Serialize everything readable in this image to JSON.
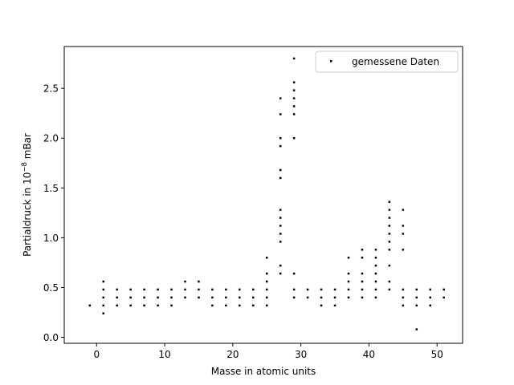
{
  "chart_data": {
    "type": "scatter",
    "xlabel": "Masse in atomic units",
    "ylabel_prefix": "Partialdruck in 10",
    "ylabel_exponent": "−8",
    "ylabel_suffix": " mBar",
    "xlim": [
      -4.75,
      53.75
    ],
    "ylim": [
      -0.06,
      2.92
    ],
    "xticks": [
      0,
      10,
      20,
      30,
      40,
      50
    ],
    "xtick_labels": [
      "0",
      "10",
      "20",
      "30",
      "40",
      "50"
    ],
    "yticks": [
      0.0,
      0.5,
      1.0,
      1.5,
      2.0,
      2.5
    ],
    "ytick_labels": [
      "0.0",
      "0.5",
      "1.0",
      "1.5",
      "2.0",
      "2.5"
    ],
    "grid": false,
    "legend_position": "top-right",
    "marker_color": "#000000",
    "series": [
      {
        "name": "gemessene Daten",
        "points": [
          [
            -1,
            0.32
          ],
          [
            1,
            0.24
          ],
          [
            1,
            0.32
          ],
          [
            1,
            0.4
          ],
          [
            1,
            0.48
          ],
          [
            1,
            0.56
          ],
          [
            3,
            0.32
          ],
          [
            3,
            0.4
          ],
          [
            3,
            0.48
          ],
          [
            5,
            0.32
          ],
          [
            5,
            0.4
          ],
          [
            5,
            0.48
          ],
          [
            7,
            0.32
          ],
          [
            7,
            0.4
          ],
          [
            7,
            0.48
          ],
          [
            9,
            0.32
          ],
          [
            9,
            0.4
          ],
          [
            9,
            0.48
          ],
          [
            11,
            0.32
          ],
          [
            11,
            0.4
          ],
          [
            11,
            0.48
          ],
          [
            13,
            0.4
          ],
          [
            13,
            0.48
          ],
          [
            13,
            0.56
          ],
          [
            15,
            0.4
          ],
          [
            15,
            0.48
          ],
          [
            15,
            0.56
          ],
          [
            17,
            0.32
          ],
          [
            17,
            0.4
          ],
          [
            17,
            0.48
          ],
          [
            19,
            0.32
          ],
          [
            19,
            0.4
          ],
          [
            19,
            0.48
          ],
          [
            21,
            0.32
          ],
          [
            21,
            0.4
          ],
          [
            21,
            0.48
          ],
          [
            23,
            0.32
          ],
          [
            23,
            0.4
          ],
          [
            23,
            0.48
          ],
          [
            25,
            0.32
          ],
          [
            25,
            0.4
          ],
          [
            25,
            0.48
          ],
          [
            25,
            0.56
          ],
          [
            25,
            0.64
          ],
          [
            25,
            0.8
          ],
          [
            27,
            0.64
          ],
          [
            27,
            0.72
          ],
          [
            27,
            0.96
          ],
          [
            27,
            1.04
          ],
          [
            27,
            1.12
          ],
          [
            27,
            1.2
          ],
          [
            27,
            1.28
          ],
          [
            27,
            1.6
          ],
          [
            27,
            1.68
          ],
          [
            27,
            1.92
          ],
          [
            27,
            2.0
          ],
          [
            27,
            2.24
          ],
          [
            27,
            2.4
          ],
          [
            29,
            0.4
          ],
          [
            29,
            0.48
          ],
          [
            29,
            0.64
          ],
          [
            29,
            2.0
          ],
          [
            29,
            2.24
          ],
          [
            29,
            2.32
          ],
          [
            29,
            2.4
          ],
          [
            29,
            2.48
          ],
          [
            29,
            2.56
          ],
          [
            29,
            2.8
          ],
          [
            31,
            0.4
          ],
          [
            31,
            0.48
          ],
          [
            33,
            0.32
          ],
          [
            33,
            0.4
          ],
          [
            33,
            0.48
          ],
          [
            35,
            0.32
          ],
          [
            35,
            0.4
          ],
          [
            35,
            0.48
          ],
          [
            37,
            0.4
          ],
          [
            37,
            0.48
          ],
          [
            37,
            0.56
          ],
          [
            37,
            0.64
          ],
          [
            37,
            0.8
          ],
          [
            39,
            0.4
          ],
          [
            39,
            0.48
          ],
          [
            39,
            0.56
          ],
          [
            39,
            0.64
          ],
          [
            39,
            0.8
          ],
          [
            39,
            0.88
          ],
          [
            41,
            0.4
          ],
          [
            41,
            0.48
          ],
          [
            41,
            0.56
          ],
          [
            41,
            0.64
          ],
          [
            41,
            0.72
          ],
          [
            41,
            0.8
          ],
          [
            41,
            0.88
          ],
          [
            43,
            0.48
          ],
          [
            43,
            0.56
          ],
          [
            43,
            0.72
          ],
          [
            43,
            0.88
          ],
          [
            43,
            0.96
          ],
          [
            43,
            1.04
          ],
          [
            43,
            1.12
          ],
          [
            43,
            1.2
          ],
          [
            43,
            1.28
          ],
          [
            43,
            1.36
          ],
          [
            45,
            0.32
          ],
          [
            45,
            0.4
          ],
          [
            45,
            0.48
          ],
          [
            45,
            0.88
          ],
          [
            45,
            1.04
          ],
          [
            45,
            1.12
          ],
          [
            45,
            1.28
          ],
          [
            47,
            0.08
          ],
          [
            47,
            0.32
          ],
          [
            47,
            0.4
          ],
          [
            47,
            0.48
          ],
          [
            49,
            0.32
          ],
          [
            49,
            0.4
          ],
          [
            49,
            0.48
          ],
          [
            51,
            0.4
          ],
          [
            51,
            0.48
          ]
        ]
      }
    ]
  }
}
